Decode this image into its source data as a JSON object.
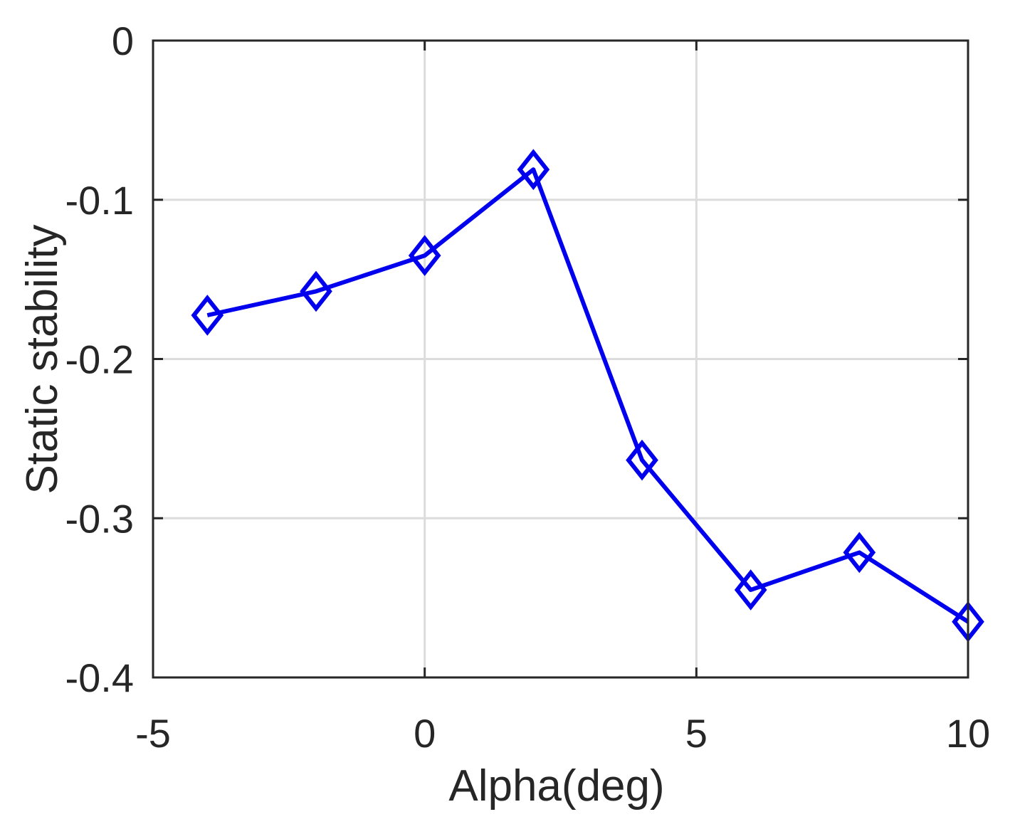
{
  "chart_data": {
    "type": "line",
    "title": "",
    "xlabel": "Alpha(deg)",
    "ylabel": "Static stability",
    "xlim": [
      -5,
      10
    ],
    "ylim": [
      -0.4,
      0
    ],
    "xticks": [
      -5,
      0,
      5,
      10
    ],
    "xtick_labels": [
      "-5",
      "0",
      "5",
      "10"
    ],
    "yticks": [
      -0.4,
      -0.3,
      -0.2,
      -0.1,
      0
    ],
    "ytick_labels": [
      "-0.4",
      "-0.3",
      "-0.2",
      "-0.1",
      "0"
    ],
    "grid": true,
    "series": [
      {
        "color": "#0000ee",
        "marker": "diamond",
        "x": [
          -4,
          -2,
          0,
          2,
          4,
          6,
          8,
          10
        ],
        "y": [
          -0.1725,
          -0.1575,
          -0.135,
          -0.081,
          -0.2635,
          -0.345,
          -0.3215,
          -0.365
        ]
      }
    ]
  }
}
